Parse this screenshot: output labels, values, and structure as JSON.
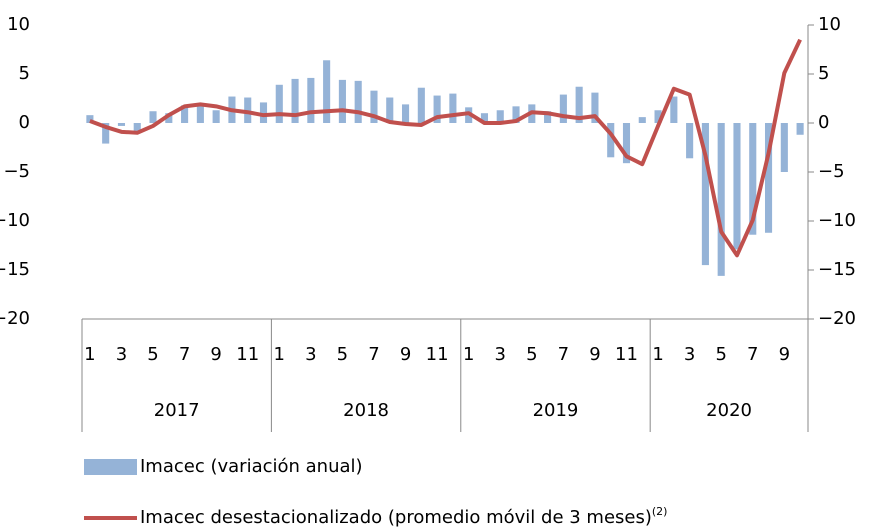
{
  "chart_data": {
    "type": "bar_line",
    "categories": [
      "1",
      null,
      "3",
      null,
      "5",
      null,
      "7",
      null,
      "9",
      null,
      "11",
      null,
      "1",
      null,
      "3",
      null,
      "5",
      null,
      "7",
      null,
      "9",
      null,
      "11",
      null,
      "1",
      null,
      "3",
      null,
      "5",
      null,
      "7",
      null,
      "9",
      null,
      "11",
      null,
      "1",
      null,
      "3",
      null,
      "5",
      null,
      "7",
      null,
      "9",
      null
    ],
    "category_groups": [
      "2017",
      "2018",
      "2019",
      "2020"
    ],
    "series": [
      {
        "name": "Imacec (variación anual)",
        "type": "bar",
        "color": "#95b3d7",
        "values": [
          0.8,
          -2.1,
          -0.3,
          -0.8,
          1.2,
          1.0,
          1.8,
          1.8,
          1.3,
          2.7,
          2.6,
          2.1,
          3.9,
          4.5,
          4.6,
          6.4,
          4.4,
          4.3,
          3.3,
          2.6,
          1.9,
          3.6,
          2.8,
          3.0,
          1.6,
          1.0,
          1.3,
          1.7,
          1.9,
          1.2,
          2.9,
          3.7,
          3.1,
          -3.5,
          -4.1,
          0.6,
          1.3,
          2.7,
          -3.6,
          -14.5,
          -15.6,
          -12.9,
          -11.4,
          -11.2,
          -5.0,
          -1.2
        ]
      },
      {
        "name": "Imacec desestacionalizado (promedio móvil de 3 meses)",
        "footnote_ref": "(2)",
        "type": "line",
        "color": "#c0504d",
        "axis": "y2",
        "values": [
          0.2,
          -0.4,
          -0.9,
          -1.0,
          -0.3,
          0.8,
          1.7,
          1.9,
          1.7,
          1.3,
          1.1,
          0.8,
          0.9,
          0.8,
          1.1,
          1.2,
          1.3,
          1.1,
          0.7,
          0.1,
          -0.1,
          -0.2,
          0.6,
          0.8,
          1.0,
          0.0,
          0.0,
          0.2,
          1.1,
          1.0,
          0.7,
          0.5,
          0.7,
          -1.1,
          -3.4,
          -4.2,
          -0.3,
          3.5,
          2.9,
          -3.3,
          -11.1,
          -13.5,
          -9.9,
          -3.1,
          5.1,
          8.5
        ]
      }
    ],
    "ylim": [
      -20,
      10
    ],
    "yticks": [
      {
        "value": -20,
        "label": "−20"
      },
      {
        "value": -15,
        "label": "−15"
      },
      {
        "value": -10,
        "label": "−10"
      },
      {
        "value": -5,
        "label": "−5"
      },
      0,
      5,
      10
    ],
    "y2lim": [
      -20,
      10
    ],
    "y2ticks": [
      {
        "value": -20,
        "label": "−20"
      },
      {
        "value": -15,
        "label": "−15"
      },
      {
        "value": -10,
        "label": "−10"
      },
      {
        "value": -5,
        "label": "−5"
      },
      0,
      5,
      10
    ],
    "grid": false
  }
}
